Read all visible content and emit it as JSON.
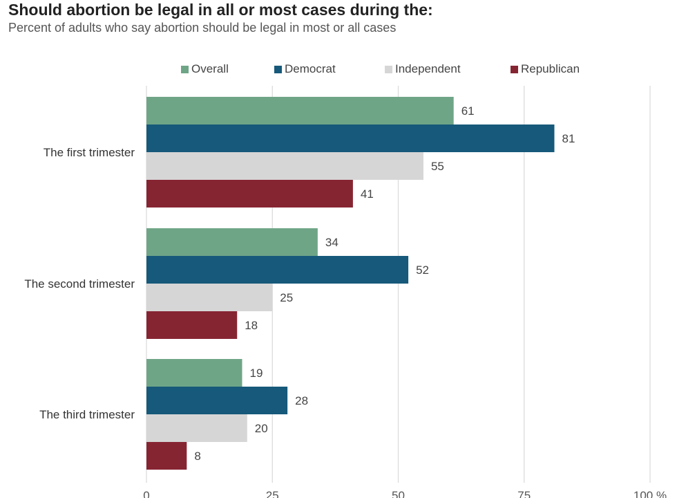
{
  "title": "Should abortion be legal in all or most cases during the:",
  "subtitle": "Percent of adults who say abortion should be legal in most or all cases",
  "chart_data": {
    "type": "bar",
    "orientation": "horizontal",
    "categories": [
      "The first trimester",
      "The second trimester",
      "The third trimester"
    ],
    "series": [
      {
        "name": "Overall",
        "color": "#6fa587",
        "values": [
          61,
          34,
          19
        ]
      },
      {
        "name": "Democrat",
        "color": "#16597a",
        "values": [
          81,
          52,
          28
        ]
      },
      {
        "name": "Independent",
        "color": "#d6d6d6",
        "values": [
          55,
          25,
          20
        ]
      },
      {
        "name": "Republican",
        "color": "#862532",
        "values": [
          41,
          18,
          8
        ]
      }
    ],
    "xlim": [
      0,
      100
    ],
    "xticks": [
      "0",
      "25",
      "50",
      "75",
      "100 %"
    ],
    "grid": true,
    "legend": "top"
  }
}
